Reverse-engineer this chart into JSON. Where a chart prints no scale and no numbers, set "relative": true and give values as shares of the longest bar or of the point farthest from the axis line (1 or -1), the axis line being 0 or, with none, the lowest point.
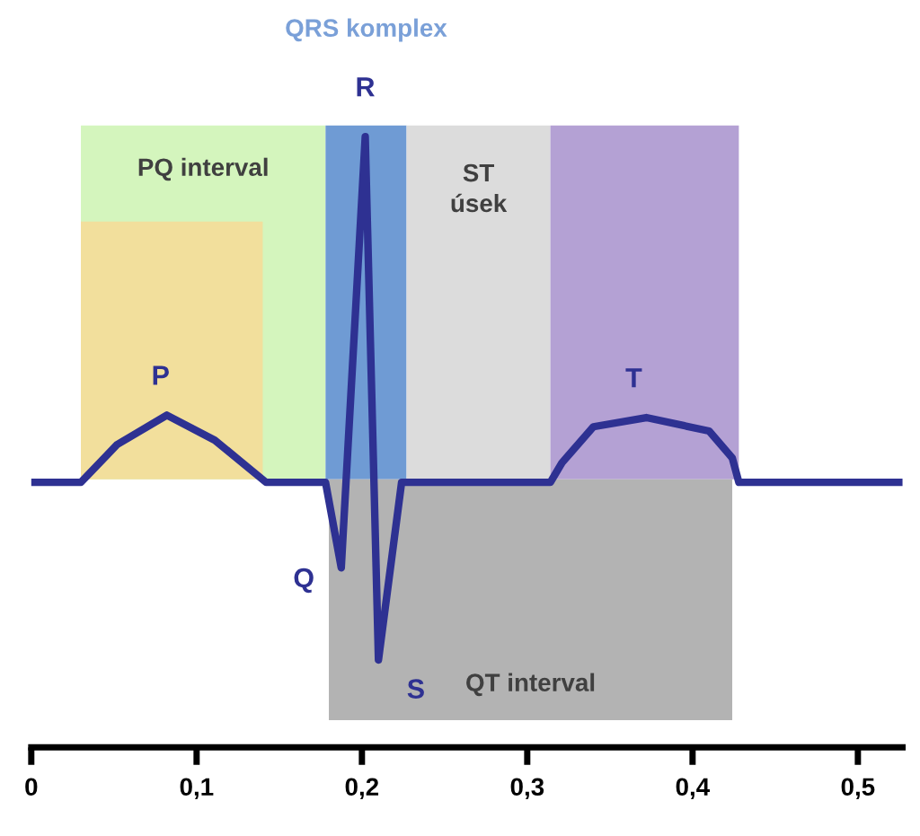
{
  "chart_data": {
    "type": "line",
    "relative": true,
    "x": [
      0,
      0.03,
      0.052,
      0.082,
      0.111,
      0.142,
      0.178,
      0.1875,
      0.202,
      0.21,
      0.224,
      0.314,
      0.321,
      0.34,
      0.372,
      0.41,
      0.424,
      0.428,
      0.527
    ],
    "series": [
      {
        "color": "#2e3192",
        "values": [
          0.434,
          0.434,
          0.496,
          0.544,
          0.503,
          0.434,
          0.434,
          0.294,
          1.0,
          0.143,
          0.434,
          0.434,
          0.466,
          0.525,
          0.54,
          0.518,
          0.474,
          0.434,
          0.434
        ]
      }
    ],
    "xlim": [
      0,
      0.527
    ],
    "xticks": [
      0,
      {
        "value": 0.1,
        "label": "0,1"
      },
      {
        "value": 0.2,
        "label": "0,2"
      },
      {
        "value": 0.3,
        "label": "0,3"
      },
      {
        "value": 0.4,
        "label": "0,4"
      },
      {
        "value": 0.5,
        "label": "0,5"
      }
    ],
    "tick_labels": "x",
    "grid": false,
    "legend": false,
    "marker": "none",
    "line_style": "solid",
    "bands": [
      {
        "axis": "x",
        "from": 0.03,
        "to": 0.178,
        "label": "PQ interval",
        "color": "#d4f5bd"
      },
      {
        "axis": "x",
        "from": 0.03,
        "to": 0.14,
        "label": null,
        "color": "#f2df9c"
      },
      {
        "axis": "x",
        "from": 0.178,
        "to": 0.227,
        "label": "QRS komplex",
        "color": "#6f9bd4"
      },
      {
        "axis": "x",
        "from": 0.227,
        "to": 0.314,
        "label": "ST\núsek",
        "color": "#dcdcdc"
      },
      {
        "axis": "x",
        "from": 0.314,
        "to": 0.428,
        "label": null,
        "color": "#b4a1d4"
      },
      {
        "axis": "x",
        "from": 0.18,
        "to": 0.424,
        "label": "QT interval",
        "color": "#b3b3b3"
      }
    ],
    "annotations": [
      {
        "text": "P",
        "x": 0.082,
        "y": 0.544
      },
      {
        "text": "Q",
        "x": 0.1875,
        "y": 0.294
      },
      {
        "text": "R",
        "x": 0.202,
        "y": 1.0
      },
      {
        "text": "S",
        "x": 0.21,
        "y": 0.143
      },
      {
        "text": "T",
        "x": 0.372,
        "y": 0.54
      }
    ]
  }
}
